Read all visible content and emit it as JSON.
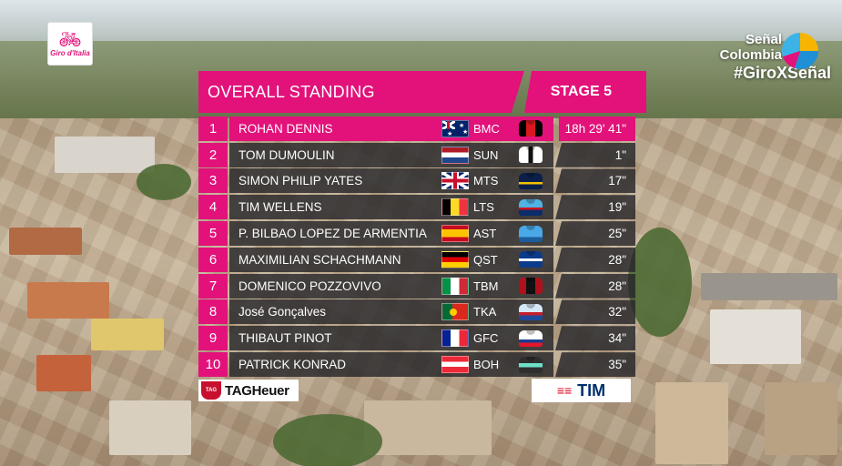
{
  "broadcast": {
    "giro_logo_text": "Giro d'Italia",
    "channel_line1": "Señal",
    "channel_line2": "Colombia",
    "hashtag": "#GiroXSeñal"
  },
  "standings": {
    "title": "OVERALL STANDING",
    "stage": "STAGE 5",
    "rows": [
      {
        "pos": "1",
        "name": "ROHAN DENNIS",
        "flag": "au-flag",
        "team": "BMC",
        "jersey": "bmc-jersey",
        "time": "18h 29' 41\""
      },
      {
        "pos": "2",
        "name": "TOM DUMOULIN",
        "flag": "nl-flag",
        "team": "SUN",
        "jersey": "sun-jersey",
        "time": "1\""
      },
      {
        "pos": "3",
        "name": "SIMON PHILIP YATES",
        "flag": "gb-flag",
        "team": "MTS",
        "jersey": "mts-jersey",
        "time": "17\""
      },
      {
        "pos": "4",
        "name": "TIM WELLENS",
        "flag": "be-flag",
        "team": "LTS",
        "jersey": "lts-jersey",
        "time": "19\""
      },
      {
        "pos": "5",
        "name": "P. BILBAO LOPEZ DE ARMENTIA",
        "flag": "es-flag",
        "team": "AST",
        "jersey": "ast-jersey",
        "time": "25\""
      },
      {
        "pos": "6",
        "name": "MAXIMILIAN SCHACHMANN",
        "flag": "de-flag",
        "team": "QST",
        "jersey": "qst-jersey",
        "time": "28\""
      },
      {
        "pos": "7",
        "name": "DOMENICO POZZOVIVO",
        "flag": "it-flag",
        "team": "TBM",
        "jersey": "tbm-jersey",
        "time": "28\""
      },
      {
        "pos": "8",
        "name": "José Gonçalves",
        "flag": "pt-flag",
        "team": "TKA",
        "jersey": "tka-jersey",
        "time": "32\""
      },
      {
        "pos": "9",
        "name": "THIBAUT PINOT",
        "flag": "fr-flag",
        "team": "GFC",
        "jersey": "gfc-jersey",
        "time": "34\""
      },
      {
        "pos": "10",
        "name": "PATRICK KONRAD",
        "flag": "at-flag",
        "team": "BOH",
        "jersey": "boh-jersey",
        "time": "35\""
      }
    ]
  },
  "sponsors": {
    "left": "TAGHeuer",
    "left_badge": "TAG",
    "right": "TIM"
  },
  "colors": {
    "accent": "#e2127a",
    "row_bg": "#26262a"
  }
}
